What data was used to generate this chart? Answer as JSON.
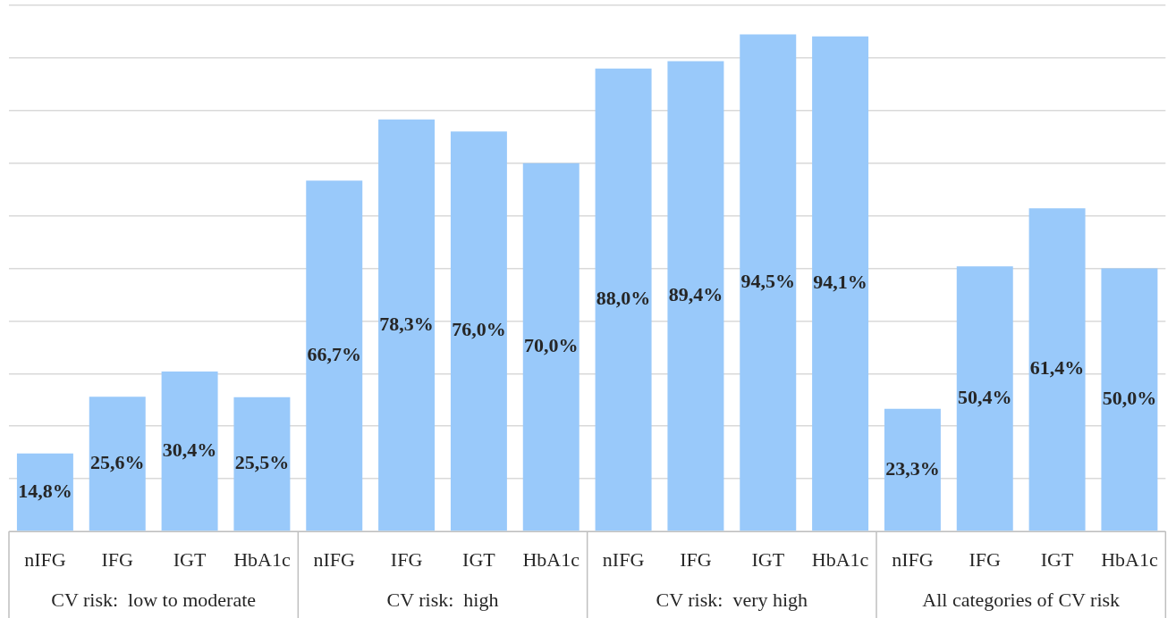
{
  "chart_data": {
    "type": "bar",
    "categories": [
      "nIFG",
      "IFG",
      "IGT",
      "HbA1c",
      "nIFG",
      "IFG",
      "IGT",
      "HbA1c",
      "nIFG",
      "IFG",
      "IGT",
      "HbA1c",
      "nIFG",
      "IFG",
      "IGT",
      "HbA1c"
    ],
    "values": [
      14.8,
      25.6,
      30.4,
      25.5,
      66.7,
      78.3,
      76.0,
      70.0,
      88.0,
      89.4,
      94.5,
      94.1,
      23.3,
      50.4,
      61.4,
      50.0
    ],
    "value_labels": [
      "14,8%",
      "25,6%",
      "30,4%",
      "25,5%",
      "66,7%",
      "78,3%",
      "76,0%",
      "70,0%",
      "88,0%",
      "89,4%",
      "94,5%",
      "94,1%",
      "23,3%",
      "50,4%",
      "61,4%",
      "50,0%"
    ],
    "color": "#99c9fa",
    "ylim": [
      0,
      100
    ],
    "yticks": [
      {
        "value": 0,
        "label": null
      },
      {
        "value": 10,
        "label": null
      },
      {
        "value": 20,
        "label": null
      },
      {
        "value": 30,
        "label": null
      },
      {
        "value": 40,
        "label": null
      },
      {
        "value": 50,
        "label": null
      },
      {
        "value": 60,
        "label": null
      },
      {
        "value": 70,
        "label": null
      },
      {
        "value": 80,
        "label": null
      },
      {
        "value": 90,
        "label": null
      },
      {
        "value": 100,
        "label": null
      }
    ],
    "grid": "y",
    "tick_labels": "x",
    "annotations": [
      "CV risk:  low to moderate",
      "CV risk:  high",
      "CV risk:  very high",
      "All categories of CV risk"
    ]
  }
}
